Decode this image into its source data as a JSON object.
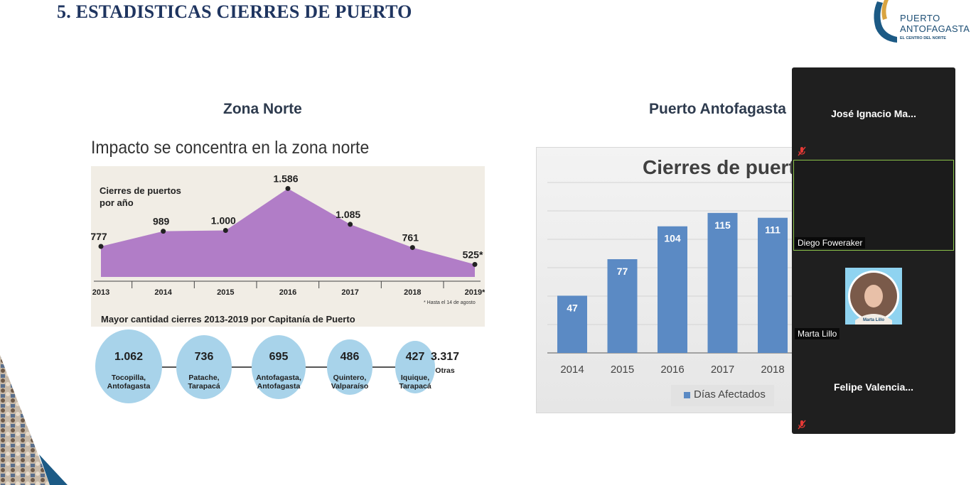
{
  "slide": {
    "title": "5. ESTADISTICAS CIERRES DE PUERTO",
    "left_subtitle": "Zona Norte",
    "right_subtitle": "Puerto Antofagasta"
  },
  "logo": {
    "line1": "PUERTO",
    "line2": "ANTOFAGASTA",
    "line3": "EL CENTRO DEL NORTE"
  },
  "left_image": {
    "title": "Impacto se concentra en la zona norte",
    "area_caption_line1": "Cierres de puertos",
    "area_caption_line2": "por año",
    "footnote": "* Hasta el 14 de agosto",
    "bubbles_title": "Mayor cantidad cierres 2013-2019 por Capitanía de Puerto",
    "bubbles": [
      {
        "value": "1.062",
        "line1": "Tocopilla,",
        "line2": "Antofagasta"
      },
      {
        "value": "736",
        "line1": "Patache,",
        "line2": "Tarapacá"
      },
      {
        "value": "695",
        "line1": "Antofagasta,",
        "line2": "Antofagasta"
      },
      {
        "value": "486",
        "line1": "Quintero,",
        "line2": "Valparaíso"
      },
      {
        "value": "427",
        "line1": "Iquique,",
        "line2": "Tarapacá"
      }
    ],
    "others_value": "3.317",
    "others_label": "Otras"
  },
  "chart_data": [
    {
      "type": "area",
      "title": "Cierres de puertos por año",
      "categories": [
        "2013",
        "2014",
        "2015",
        "2016",
        "2017",
        "2018",
        "2019*"
      ],
      "values": [
        777,
        989,
        1000,
        1586,
        1085,
        761,
        525
      ],
      "value_labels": [
        "777",
        "989",
        "1.000",
        "1.586",
        "1.085",
        "761",
        "525*"
      ],
      "ylim": [
        350,
        1650
      ]
    },
    {
      "type": "bar",
      "title": "Cierres de puert",
      "categories": [
        "2014",
        "2015",
        "2016",
        "2017",
        "2018"
      ],
      "series": [
        {
          "name": "Días Afectados",
          "values": [
            47,
            77,
            104,
            115,
            111
          ]
        }
      ],
      "ylim": [
        0,
        140
      ],
      "grid": true,
      "legend": "bottom"
    }
  ],
  "zoom": {
    "participants": [
      {
        "name": "José Ignacio  Ma...",
        "muted": true
      },
      {
        "name": "Diego Foweraker",
        "muted": false
      },
      {
        "name": "Marta Lillo",
        "muted": false,
        "avatar_caption": "Marta Lillo"
      },
      {
        "name": "Felipe  Valencia...",
        "muted": true
      }
    ]
  },
  "colors": {
    "title_blue": "#1f3560",
    "area_purple": "#b17dc7",
    "bar_blue": "#5b8ac4",
    "bubble_blue": "#a8d3ea",
    "zoom_bg": "#1f1f1f",
    "active_border": "#8bc34a"
  }
}
